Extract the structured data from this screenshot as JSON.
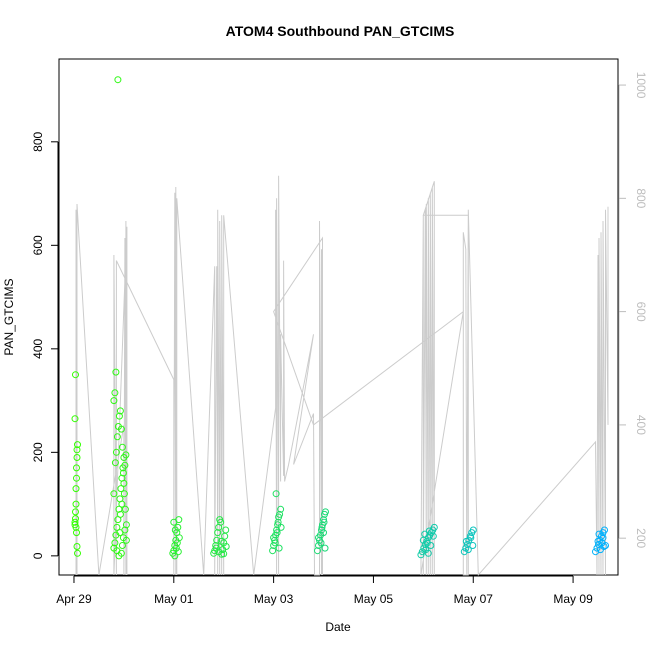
{
  "chart_data": {
    "type": "scatter",
    "title": "ATOM4 Southbound PAN_GTCIMS",
    "xlabel": "Date",
    "ylabel": "PAN_GTCIMS",
    "x_ticks": [
      "Apr 29",
      "May 01",
      "May 03",
      "May 05",
      "May 07",
      "May 09"
    ],
    "x_tick_values": [
      0,
      2,
      4,
      6,
      8,
      10
    ],
    "xlim": [
      -0.3,
      10.9
    ],
    "y_ticks": [
      0,
      200,
      400,
      600,
      800
    ],
    "ylim": [
      -37,
      960
    ],
    "y2_ticks": [
      200,
      400,
      600,
      800,
      1000
    ],
    "y2lim": [
      1046,
      135
    ],
    "grid": false,
    "marker": "open-circle",
    "point_color_range": [
      "#33ff00",
      "#00b0ff"
    ],
    "series": [
      {
        "marker": "open-circle",
        "color_mode": "gradient",
        "points": [
          [
            0.02,
            60
          ],
          [
            0.02,
            65
          ],
          [
            0.03,
            72
          ],
          [
            0.03,
            85
          ],
          [
            0.04,
            100
          ],
          [
            0.04,
            130
          ],
          [
            0.05,
            150
          ],
          [
            0.05,
            170
          ],
          [
            0.06,
            190
          ],
          [
            0.06,
            205
          ],
          [
            0.07,
            215
          ],
          [
            0.02,
            265
          ],
          [
            0.03,
            350
          ],
          [
            0.05,
            45
          ],
          [
            0.06,
            18
          ],
          [
            0.07,
            5
          ],
          [
            0.04,
            55
          ],
          [
            0.8,
            15
          ],
          [
            0.82,
            25
          ],
          [
            0.84,
            40
          ],
          [
            0.86,
            55
          ],
          [
            0.88,
            70
          ],
          [
            0.9,
            90
          ],
          [
            0.92,
            110
          ],
          [
            0.94,
            130
          ],
          [
            0.96,
            150
          ],
          [
            0.98,
            170
          ],
          [
            1.0,
            190
          ],
          [
            0.8,
            120
          ],
          [
            0.83,
            180
          ],
          [
            0.85,
            200
          ],
          [
            0.87,
            230
          ],
          [
            0.89,
            250
          ],
          [
            0.91,
            270
          ],
          [
            0.93,
            280
          ],
          [
            0.8,
            300
          ],
          [
            0.82,
            315
          ],
          [
            0.84,
            355
          ],
          [
            0.95,
            245
          ],
          [
            0.97,
            210
          ],
          [
            0.99,
            160
          ],
          [
            1.01,
            120
          ],
          [
            1.03,
            90
          ],
          [
            1.05,
            60
          ],
          [
            0.95,
            5
          ],
          [
            0.97,
            20
          ],
          [
            0.99,
            35
          ],
          [
            1.02,
            50
          ],
          [
            0.88,
            920
          ],
          [
            0.9,
            0
          ],
          [
            0.93,
            80
          ],
          [
            0.96,
            100
          ],
          [
            1.0,
            140
          ],
          [
            1.02,
            175
          ],
          [
            1.04,
            195
          ],
          [
            0.86,
            10
          ],
          [
            0.92,
            45
          ],
          [
            1.05,
            30
          ],
          [
            1.98,
            5
          ],
          [
            2.0,
            10
          ],
          [
            2.02,
            20
          ],
          [
            2.04,
            30
          ],
          [
            2.06,
            45
          ],
          [
            2.08,
            55
          ],
          [
            2.1,
            70
          ],
          [
            2.0,
            65
          ],
          [
            2.02,
            0
          ],
          [
            2.05,
            15
          ],
          [
            2.07,
            25
          ],
          [
            2.09,
            8
          ],
          [
            2.11,
            35
          ],
          [
            2.03,
            50
          ],
          [
            2.8,
            5
          ],
          [
            2.82,
            10
          ],
          [
            2.84,
            20
          ],
          [
            2.86,
            30
          ],
          [
            2.88,
            45
          ],
          [
            2.9,
            55
          ],
          [
            2.92,
            70
          ],
          [
            2.94,
            65
          ],
          [
            2.96,
            3
          ],
          [
            2.98,
            12
          ],
          [
            3.0,
            25
          ],
          [
            3.02,
            38
          ],
          [
            3.04,
            50
          ],
          [
            2.85,
            15
          ],
          [
            2.9,
            8
          ],
          [
            2.95,
            28
          ],
          [
            3.0,
            4
          ],
          [
            3.05,
            18
          ],
          [
            3.98,
            10
          ],
          [
            4.0,
            20
          ],
          [
            4.02,
            30
          ],
          [
            4.04,
            40
          ],
          [
            4.06,
            50
          ],
          [
            4.08,
            60
          ],
          [
            4.1,
            75
          ],
          [
            4.12,
            80
          ],
          [
            4.14,
            90
          ],
          [
            4.05,
            120
          ],
          [
            4.0,
            35
          ],
          [
            4.03,
            25
          ],
          [
            4.07,
            45
          ],
          [
            4.11,
            15
          ],
          [
            4.15,
            55
          ],
          [
            4.09,
            65
          ],
          [
            4.88,
            10
          ],
          [
            4.9,
            20
          ],
          [
            4.92,
            30
          ],
          [
            4.94,
            40
          ],
          [
            4.96,
            50
          ],
          [
            4.98,
            60
          ],
          [
            5.0,
            70
          ],
          [
            5.02,
            80
          ],
          [
            5.04,
            85
          ],
          [
            4.9,
            35
          ],
          [
            4.95,
            25
          ],
          [
            5.0,
            45
          ],
          [
            5.03,
            15
          ],
          [
            4.97,
            55
          ],
          [
            5.01,
            65
          ],
          [
            6.95,
            2
          ],
          [
            6.98,
            8
          ],
          [
            7.01,
            15
          ],
          [
            7.04,
            22
          ],
          [
            7.07,
            28
          ],
          [
            7.1,
            35
          ],
          [
            7.13,
            40
          ],
          [
            7.16,
            45
          ],
          [
            7.19,
            50
          ],
          [
            7.22,
            55
          ],
          [
            7.0,
            30
          ],
          [
            7.05,
            12
          ],
          [
            7.1,
            5
          ],
          [
            7.15,
            20
          ],
          [
            7.2,
            38
          ],
          [
            7.12,
            48
          ],
          [
            7.08,
            25
          ],
          [
            7.03,
            42
          ],
          [
            7.82,
            8
          ],
          [
            7.85,
            15
          ],
          [
            7.88,
            22
          ],
          [
            7.91,
            30
          ],
          [
            7.94,
            38
          ],
          [
            7.97,
            45
          ],
          [
            8.0,
            50
          ],
          [
            7.86,
            28
          ],
          [
            7.9,
            12
          ],
          [
            7.95,
            35
          ],
          [
            7.99,
            20
          ],
          [
            10.45,
            8
          ],
          [
            10.48,
            15
          ],
          [
            10.51,
            22
          ],
          [
            10.54,
            30
          ],
          [
            10.57,
            38
          ],
          [
            10.6,
            45
          ],
          [
            10.63,
            50
          ],
          [
            10.5,
            28
          ],
          [
            10.55,
            12
          ],
          [
            10.6,
            35
          ],
          [
            10.65,
            20
          ],
          [
            10.52,
            42
          ],
          [
            10.58,
            25
          ],
          [
            10.62,
            18
          ]
        ]
      },
      {
        "type": "line",
        "axis": "right",
        "color": "#cccccc",
        "points": [
          [
            0.04,
            135
          ],
          [
            0.04,
            780
          ],
          [
            0.06,
            135
          ],
          [
            0.06,
            790
          ],
          [
            0.5,
            135
          ],
          [
            1.0,
            400
          ],
          [
            1.0,
            135
          ],
          [
            1.02,
            730
          ],
          [
            1.04,
            135
          ],
          [
            1.04,
            760
          ],
          [
            1.06,
            135
          ],
          [
            1.06,
            750
          ],
          [
            0.8,
            135
          ],
          [
            0.8,
            700
          ],
          [
            0.85,
            135
          ],
          [
            0.85,
            690
          ],
          [
            2.0,
            480
          ],
          [
            2.0,
            135
          ],
          [
            2.02,
            810
          ],
          [
            2.04,
            135
          ],
          [
            2.04,
            820
          ],
          [
            2.06,
            135
          ],
          [
            2.06,
            800
          ],
          [
            2.6,
            135
          ],
          [
            2.82,
            680
          ],
          [
            2.82,
            135
          ],
          [
            2.86,
            680
          ],
          [
            2.88,
            135
          ],
          [
            2.88,
            780
          ],
          [
            2.92,
            135
          ],
          [
            2.92,
            760
          ],
          [
            2.96,
            135
          ],
          [
            2.96,
            770
          ],
          [
            3.0,
            135
          ],
          [
            3.0,
            770
          ],
          [
            3.6,
            135
          ],
          [
            4.04,
            430
          ],
          [
            4.04,
            780
          ],
          [
            4.06,
            135
          ],
          [
            4.06,
            800
          ],
          [
            4.1,
            135
          ],
          [
            4.1,
            840
          ],
          [
            4.14,
            300
          ],
          [
            4.14,
            560
          ],
          [
            4.2,
            310
          ],
          [
            4.2,
            690
          ],
          [
            4.22,
            300
          ],
          [
            4.3,
            330
          ],
          [
            4.8,
            560
          ],
          [
            4.4,
            330
          ],
          [
            4.8,
            420
          ],
          [
            4.82,
            135
          ],
          [
            4.92,
            135
          ],
          [
            4.92,
            760
          ],
          [
            4.96,
            135
          ],
          [
            4.96,
            710
          ],
          [
            4.98,
            135
          ],
          [
            4.98,
            730
          ],
          [
            4.0,
            600
          ],
          [
            4.8,
            400
          ],
          [
            7.8,
            600
          ],
          [
            6.95,
            135
          ],
          [
            7.0,
            770
          ],
          [
            7.0,
            135
          ],
          [
            7.04,
            780
          ],
          [
            7.06,
            135
          ],
          [
            7.06,
            790
          ],
          [
            7.1,
            135
          ],
          [
            7.1,
            800
          ],
          [
            7.14,
            135
          ],
          [
            7.14,
            810
          ],
          [
            7.18,
            135
          ],
          [
            7.18,
            820
          ],
          [
            7.22,
            135
          ],
          [
            7.22,
            830
          ],
          [
            7.0,
            770
          ],
          [
            7.9,
            770
          ],
          [
            7.9,
            135
          ],
          [
            7.8,
            135
          ],
          [
            7.8,
            740
          ],
          [
            7.85,
            710
          ],
          [
            7.87,
            135
          ],
          [
            7.9,
            780
          ],
          [
            8.1,
            135
          ],
          [
            10.45,
            370
          ],
          [
            10.48,
            135
          ],
          [
            10.5,
            700
          ],
          [
            10.52,
            135
          ],
          [
            10.52,
            730
          ],
          [
            10.56,
            135
          ],
          [
            10.56,
            740
          ],
          [
            10.6,
            135
          ],
          [
            10.6,
            760
          ],
          [
            10.65,
            135
          ],
          [
            10.65,
            780
          ],
          [
            10.7,
            400
          ],
          [
            10.7,
            785
          ]
        ]
      }
    ]
  }
}
